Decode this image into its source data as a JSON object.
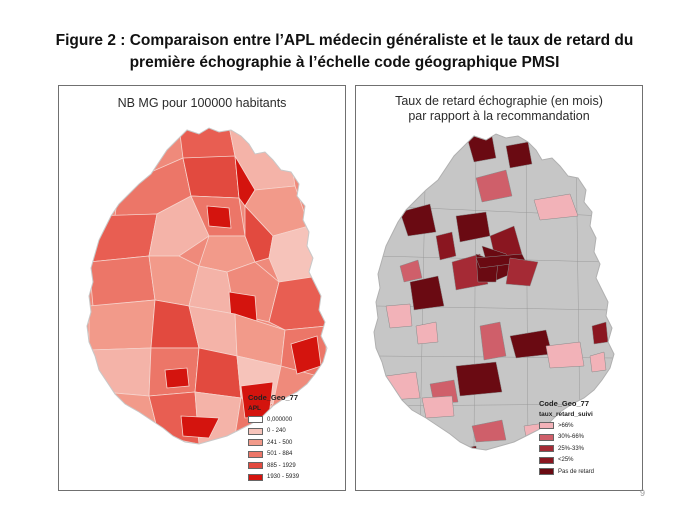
{
  "title": {
    "line1": "Figure 2 : Comparaison entre l’APL médecin généraliste et le taux de retard du",
    "line2": "première échographie à l’échelle code géographique PMSI"
  },
  "left_map": {
    "title": "NB MG pour 100000 habitants",
    "legend": {
      "title": "Code_Geo_77",
      "subtitle": "APL",
      "items": [
        {
          "label": "0,000000",
          "color": "#ffffff"
        },
        {
          "label": "0 - 240",
          "color": "#f7c4bb"
        },
        {
          "label": "241 - 500",
          "color": "#f29a8a"
        },
        {
          "label": "501 - 884",
          "color": "#ec7668"
        },
        {
          "label": "885 - 1929",
          "color": "#e24a3f"
        },
        {
          "label": "1930 - 5939",
          "color": "#d4140e"
        }
      ]
    }
  },
  "right_map": {
    "title_line1": "Taux de retard échographie (en mois)",
    "title_line2": "par rapport à la recommandation",
    "base_color": "#c6c6c6",
    "legend": {
      "title": "Code_Geo_77",
      "subtitle": "taux_retard_suivi",
      "items": [
        {
          "label": ">66%",
          "color": "#f2b2b8"
        },
        {
          "label": "30%-66%",
          "color": "#cf5f6a"
        },
        {
          "label": "25%-33%",
          "color": "#a52a35"
        },
        {
          "label": "<25%",
          "color": "#8a1620"
        },
        {
          "label": "Pas de retard",
          "color": "#6a0a12"
        }
      ]
    }
  },
  "page_number": "9"
}
